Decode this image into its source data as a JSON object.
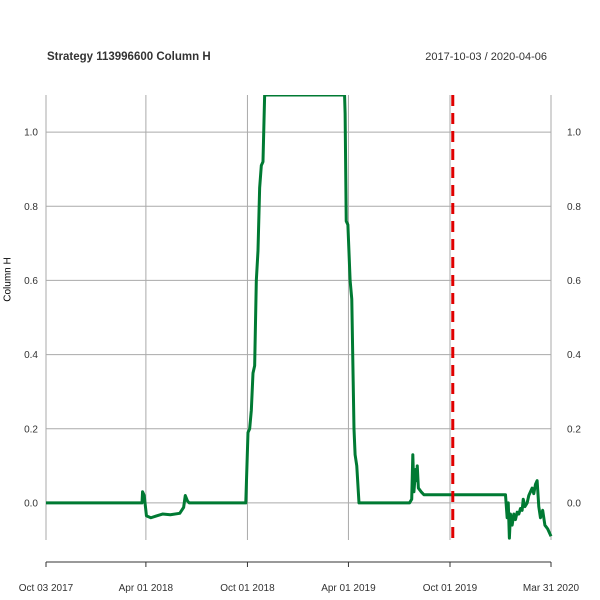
{
  "header": {
    "title": "Strategy 113996600 Column H",
    "date_range": "2017-10-03 / 2020-04-06"
  },
  "chart_data": {
    "type": "line",
    "title": "Strategy 113996600 Column H",
    "ylabel": "Column H",
    "xlabel": "",
    "x_range": [
      "2017-10-03",
      "2020-03-31"
    ],
    "ylim": [
      -0.1,
      1.1
    ],
    "y_ticks": [
      0.0,
      0.2,
      0.4,
      0.6,
      0.8,
      1.0
    ],
    "y_tick_labels": [
      "0.0",
      "0.2",
      "0.4",
      "0.6",
      "0.8",
      "1.0"
    ],
    "x_ticks": [
      "2017-10-03",
      "2018-04-01",
      "2018-10-01",
      "2019-04-01",
      "2019-10-01",
      "2020-03-31"
    ],
    "x_tick_labels": [
      "Oct 03 2017",
      "Apr 01 2018",
      "Oct 01 2018",
      "Apr 01 2019",
      "Oct 01 2019",
      "Mar 31 2020"
    ],
    "grid": true,
    "colors": {
      "line": "#007a33",
      "vline": "#e00000",
      "grid": "#aaaaaa"
    },
    "vline": {
      "date": "2019-10-06",
      "style": "dashed"
    },
    "series": [
      {
        "points": [
          [
            "2017-10-03",
            0.0
          ],
          [
            "2018-03-25",
            0.0
          ],
          [
            "2018-03-26",
            0.03
          ],
          [
            "2018-03-29",
            0.02
          ],
          [
            "2018-04-02",
            -0.035
          ],
          [
            "2018-04-10",
            -0.04
          ],
          [
            "2018-04-20",
            -0.035
          ],
          [
            "2018-05-01",
            -0.03
          ],
          [
            "2018-05-15",
            -0.032
          ],
          [
            "2018-06-01",
            -0.028
          ],
          [
            "2018-06-08",
            -0.012
          ],
          [
            "2018-06-11",
            0.02
          ],
          [
            "2018-06-15",
            0.005
          ],
          [
            "2018-06-18",
            0.0
          ],
          [
            "2018-09-28",
            0.0
          ],
          [
            "2018-10-02",
            0.19
          ],
          [
            "2018-10-05",
            0.2
          ],
          [
            "2018-10-08",
            0.25
          ],
          [
            "2018-10-11",
            0.35
          ],
          [
            "2018-10-14",
            0.37
          ],
          [
            "2018-10-17",
            0.6
          ],
          [
            "2018-10-20",
            0.68
          ],
          [
            "2018-10-23",
            0.85
          ],
          [
            "2018-10-26",
            0.91
          ],
          [
            "2018-10-29",
            0.92
          ],
          [
            "2018-11-01",
            1.1
          ],
          [
            "2019-03-25",
            1.1
          ],
          [
            "2019-03-26",
            1.05
          ],
          [
            "2019-03-28",
            0.76
          ],
          [
            "2019-03-31",
            0.75
          ],
          [
            "2019-04-04",
            0.6
          ],
          [
            "2019-04-07",
            0.55
          ],
          [
            "2019-04-11",
            0.2
          ],
          [
            "2019-04-13",
            0.13
          ],
          [
            "2019-04-16",
            0.1
          ],
          [
            "2019-04-20",
            0.0
          ],
          [
            "2019-07-20",
            0.0
          ],
          [
            "2019-07-24",
            0.01
          ],
          [
            "2019-07-26",
            0.13
          ],
          [
            "2019-07-28",
            0.03
          ],
          [
            "2019-07-31",
            0.09
          ],
          [
            "2019-08-02",
            0.06
          ],
          [
            "2019-08-03",
            0.1
          ],
          [
            "2019-08-05",
            0.04
          ],
          [
            "2019-08-10",
            0.03
          ],
          [
            "2019-08-15",
            0.022
          ],
          [
            "2020-01-09",
            0.022
          ],
          [
            "2020-01-12",
            -0.04
          ],
          [
            "2020-01-14",
            0.0
          ],
          [
            "2020-01-16",
            -0.095
          ],
          [
            "2020-01-18",
            -0.03
          ],
          [
            "2020-01-21",
            -0.06
          ],
          [
            "2020-01-24",
            -0.03
          ],
          [
            "2020-01-27",
            -0.045
          ],
          [
            "2020-01-30",
            -0.025
          ],
          [
            "2020-02-02",
            -0.03
          ],
          [
            "2020-02-05",
            -0.015
          ],
          [
            "2020-02-08",
            -0.02
          ],
          [
            "2020-02-10",
            0.01
          ],
          [
            "2020-02-13",
            -0.01
          ],
          [
            "2020-02-17",
            0.0
          ],
          [
            "2020-02-20",
            0.02
          ],
          [
            "2020-02-23",
            0.03
          ],
          [
            "2020-02-26",
            0.04
          ],
          [
            "2020-02-29",
            0.025
          ],
          [
            "2020-03-03",
            0.05
          ],
          [
            "2020-03-06",
            0.06
          ],
          [
            "2020-03-09",
            -0.01
          ],
          [
            "2020-03-12",
            -0.04
          ],
          [
            "2020-03-16",
            -0.02
          ],
          [
            "2020-03-20",
            -0.06
          ],
          [
            "2020-03-25",
            -0.07
          ],
          [
            "2020-03-31",
            -0.09
          ]
        ]
      }
    ]
  }
}
